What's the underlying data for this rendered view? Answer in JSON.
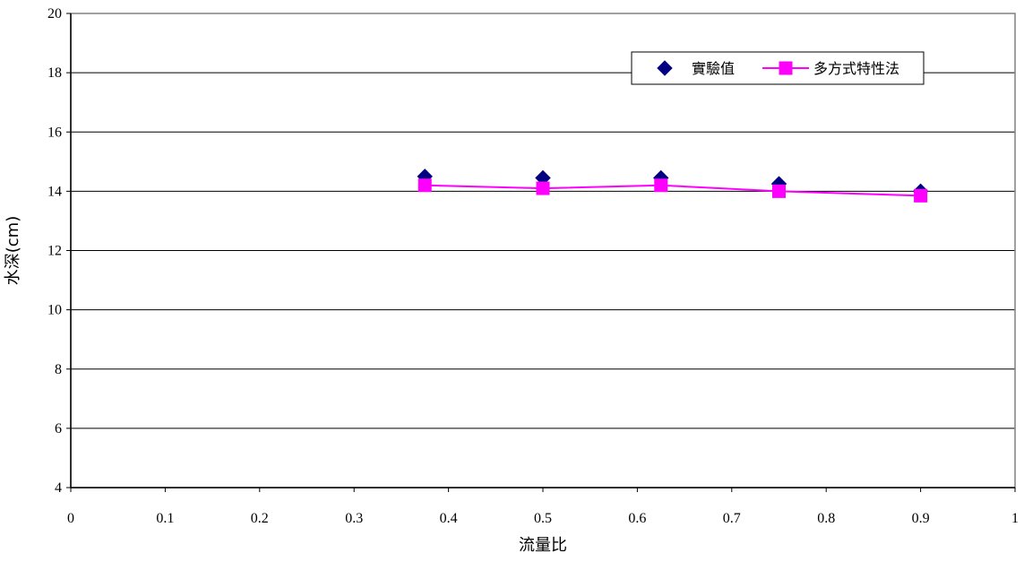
{
  "chart_data": {
    "type": "line",
    "xlabel": "流量比",
    "ylabel": "水深(cm)",
    "xlim": [
      0,
      1
    ],
    "ylim": [
      4,
      20
    ],
    "x_ticks": [
      "0",
      "0.1",
      "0.2",
      "0.3",
      "0.4",
      "0.5",
      "0.6",
      "0.7",
      "0.8",
      "0.9",
      "1"
    ],
    "y_ticks": [
      "4",
      "6",
      "8",
      "10",
      "12",
      "14",
      "16",
      "18",
      "20"
    ],
    "grid": "horizontal",
    "legend_position": "top-right",
    "series": [
      {
        "name": "實驗值",
        "style": "markers",
        "marker": "diamond",
        "color": "#000080",
        "x": [
          0.375,
          0.5,
          0.625,
          0.75,
          0.9
        ],
        "y": [
          14.5,
          14.45,
          14.45,
          14.25,
          14.0
        ]
      },
      {
        "name": "多方式特性法",
        "style": "line-markers",
        "marker": "square",
        "color": "#FF00FF",
        "x": [
          0.375,
          0.5,
          0.625,
          0.75,
          0.9
        ],
        "y": [
          14.2,
          14.1,
          14.2,
          14.0,
          13.85
        ]
      }
    ]
  }
}
